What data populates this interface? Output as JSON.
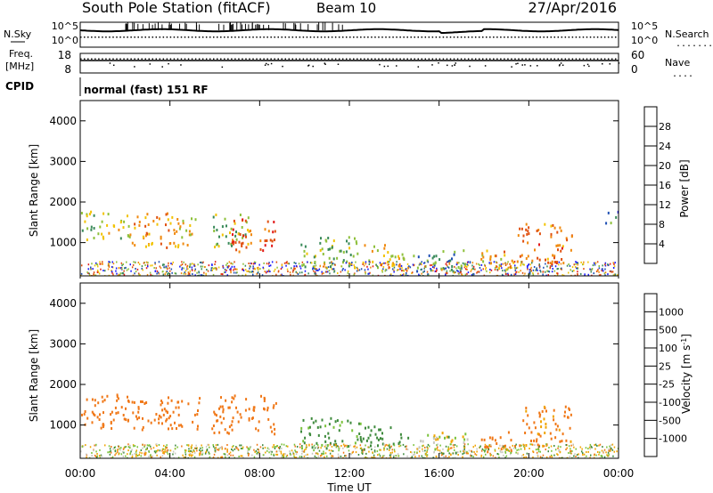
{
  "header": {
    "station": "South Pole Station (fitACF)",
    "beam": "Beam 10",
    "date": "27/Apr/2016"
  },
  "noise_panel": {
    "left_label": "N.Sky",
    "right_label": "N.Search",
    "right_legend": ".......",
    "left_ticks": [
      "10^5",
      "10^0"
    ],
    "right_ticks": [
      "10^5",
      "10^0"
    ]
  },
  "freq_panel": {
    "left_label_line1": "Freq.",
    "left_label_line2": "[MHz]",
    "right_label": "Nave",
    "right_legend": "....",
    "left_ticks": [
      "18",
      "8"
    ],
    "right_ticks": [
      "60",
      "0"
    ]
  },
  "cpid": {
    "label": "CPID",
    "value": "normal (fast) 151 RF"
  },
  "colors": {
    "power": [
      "#1a1aff",
      "#1e4fb4",
      "#3a8a5a",
      "#8ec03a",
      "#f2c300",
      "#f08a10",
      "#e05010",
      "#e21a1a"
    ],
    "velocity": [
      "#1a3aa8",
      "#2e7a96",
      "#3e8a3c",
      "#7ac23a",
      "#c8c8c0",
      "#f0a400",
      "#f07818",
      "#e84818",
      "#e01414"
    ]
  },
  "power_colorbar": {
    "label": "Power [dB]",
    "ticks": [
      "4",
      "8",
      "12",
      "16",
      "20",
      "24",
      "28"
    ]
  },
  "velocity_colorbar": {
    "label": "Velocity [m s",
    "label_sup": "-1",
    "label_close": "]",
    "ticks": [
      "1000",
      "500",
      "100",
      "25",
      "-25",
      "-100",
      "-500",
      "-1000"
    ]
  },
  "x_ticks": [
    "00:00",
    "04:00",
    "08:00",
    "12:00",
    "16:00",
    "20:00",
    "00:00"
  ],
  "x_label": "Time UT",
  "chart_data": [
    {
      "type": "heatmap",
      "panel": "power",
      "xlabel": "Time UT",
      "ylabel": "Slant Range [km]",
      "x_range_hours": [
        0,
        24
      ],
      "ylim": [
        180,
        4500
      ],
      "y_ticks": [
        1000,
        2000,
        3000,
        4000
      ],
      "colorbar_range_db": [
        0,
        32
      ],
      "echo_regions": [
        {
          "t0": 0.0,
          "t1": 0.9,
          "r0": 1100,
          "r1": 1800,
          "value": 14
        },
        {
          "t0": 0.9,
          "t1": 2.2,
          "r0": 1100,
          "r1": 1750,
          "value": 16
        },
        {
          "t0": 2.2,
          "t1": 4.3,
          "r0": 900,
          "r1": 1750,
          "value": 22
        },
        {
          "t0": 4.3,
          "t1": 5.3,
          "r0": 900,
          "r1": 1650,
          "value": 18
        },
        {
          "t0": 5.8,
          "t1": 7.5,
          "r0": 900,
          "r1": 1750,
          "value": 14
        },
        {
          "t0": 6.7,
          "t1": 8.7,
          "r0": 800,
          "r1": 1600,
          "value": 27
        },
        {
          "t0": 9.8,
          "t1": 12.5,
          "r0": 400,
          "r1": 1200,
          "value": 13
        },
        {
          "t0": 12.5,
          "t1": 14.6,
          "r0": 400,
          "r1": 1000,
          "value": 18
        },
        {
          "t0": 14.8,
          "t1": 17.3,
          "r0": 300,
          "r1": 850,
          "value": 10
        },
        {
          "t0": 17.8,
          "t1": 19.5,
          "r0": 300,
          "r1": 850,
          "value": 20
        },
        {
          "t0": 19.5,
          "t1": 21.9,
          "r0": 500,
          "r1": 1500,
          "value": 24
        },
        {
          "t0": 23.4,
          "t1": 24.0,
          "r0": 1500,
          "r1": 1800,
          "value": 8
        }
      ]
    },
    {
      "type": "heatmap",
      "panel": "velocity",
      "xlabel": "Time UT",
      "ylabel": "Slant Range [km]",
      "x_range_hours": [
        0,
        24
      ],
      "ylim": [
        180,
        4500
      ],
      "y_ticks": [
        1000,
        2000,
        3000,
        4000
      ],
      "echo_regions": [
        {
          "t0": 0.0,
          "t1": 2.2,
          "r0": 900,
          "r1": 1800,
          "value": -300
        },
        {
          "t0": 2.2,
          "t1": 5.3,
          "r0": 900,
          "r1": 1750,
          "value": -300
        },
        {
          "t0": 5.8,
          "t1": 8.7,
          "r0": 800,
          "r1": 1750,
          "value": -400
        },
        {
          "t0": 9.8,
          "t1": 12.5,
          "r0": 400,
          "r1": 1200,
          "value": 150
        },
        {
          "t0": 12.5,
          "t1": 14.6,
          "r0": 400,
          "r1": 1000,
          "value": 200
        },
        {
          "t0": 14.8,
          "t1": 17.3,
          "r0": 300,
          "r1": 850,
          "value": 30
        },
        {
          "t0": 17.8,
          "t1": 19.5,
          "r0": 300,
          "r1": 850,
          "value": -200
        },
        {
          "t0": 19.5,
          "t1": 21.9,
          "r0": 500,
          "r1": 1500,
          "value": -150
        }
      ]
    }
  ]
}
